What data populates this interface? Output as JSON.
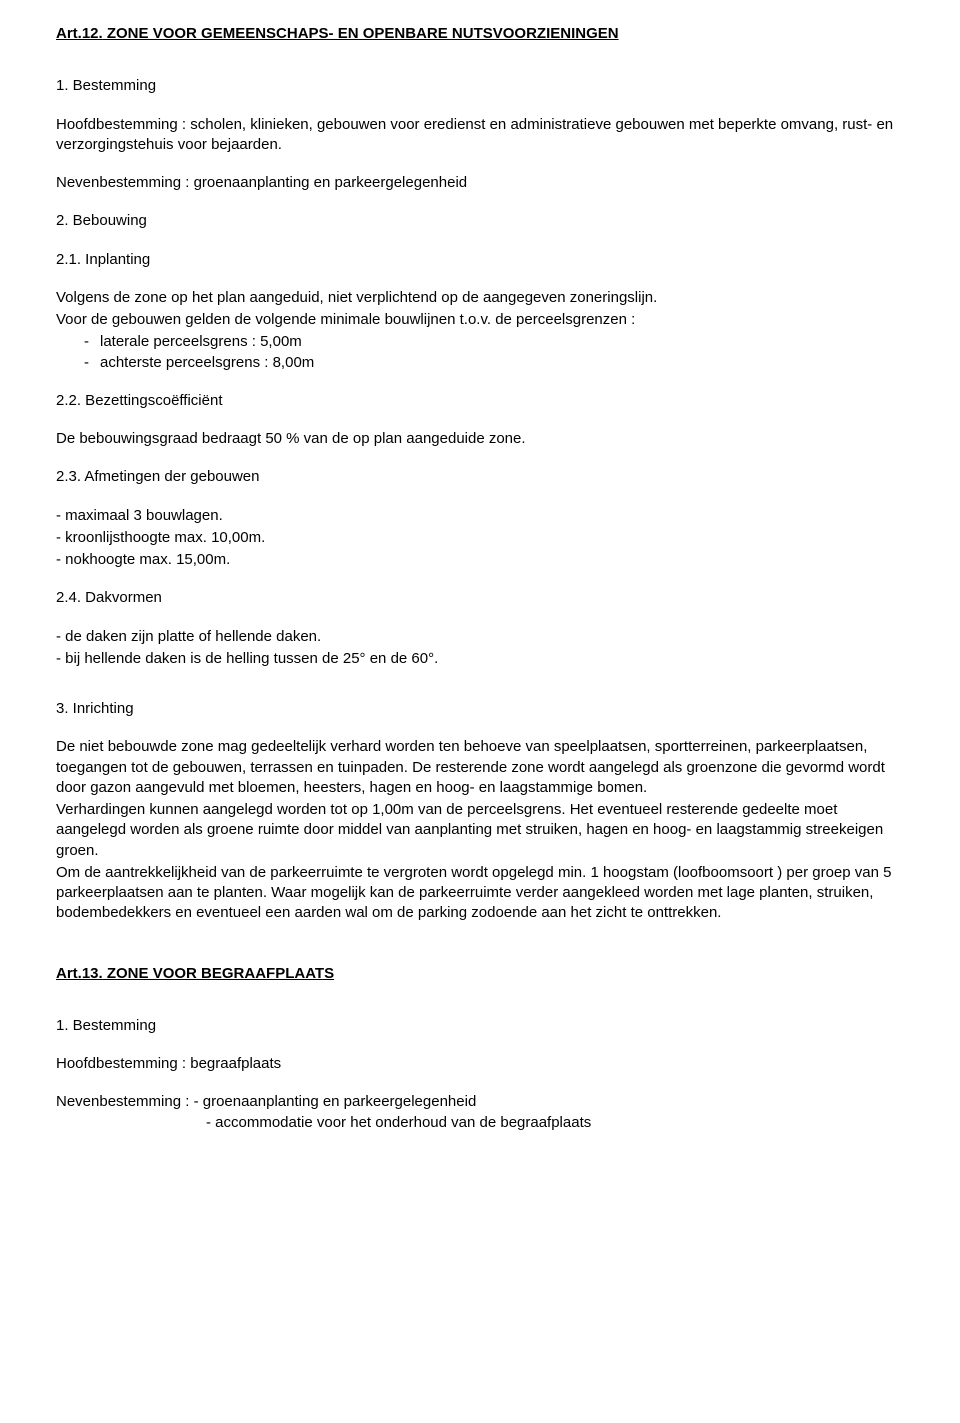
{
  "art12": {
    "num": "Art.12.",
    "title": " ZONE VOOR GEMEENSCHAPS- EN OPENBARE NUTSVOORZIENINGEN",
    "s1_num": "1. Bestemming",
    "s1_p1": "Hoofdbestemming : scholen, klinieken, gebouwen voor eredienst en administratieve gebouwen met beperkte omvang, rust- en verzorgingstehuis voor bejaarden.",
    "s1_p2": "Nevenbestemming : groenaanplanting en parkeergelegenheid",
    "s2_num": "2. Bebouwing",
    "s21_num": "2.1. Inplanting",
    "s21_p1": "Volgens de zone op het plan aangeduid, niet verplichtend op de aangegeven zoneringslijn.",
    "s21_p2": "Voor de gebouwen gelden de volgende minimale bouwlijnen t.o.v. de perceelsgrenzen :",
    "s21_b1": "laterale perceelsgrens : 5,00m",
    "s21_b2": "achterste perceelsgrens : 8,00m",
    "s22_num": "2.2. Bezettingscoëfficiënt",
    "s22_p1": "De bebouwingsgraad bedraagt 50 % van de op plan aangeduide zone.",
    "s23_num": "2.3. Afmetingen der gebouwen",
    "s23_l1": "- maximaal 3 bouwlagen.",
    "s23_l2": "- kroonlijsthoogte max. 10,00m.",
    "s23_l3": "- nokhoogte max. 15,00m.",
    "s24_num": "2.4. Dakvormen",
    "s24_l1": "- de daken zijn platte of hellende daken.",
    "s24_l2": "- bij hellende daken is de helling tussen de 25° en de 60°.",
    "s3_num": "3. Inrichting",
    "s3_p1": "De niet bebouwde zone mag gedeeltelijk verhard worden ten behoeve van speelplaatsen, sportterreinen, parkeerplaatsen, toegangen tot de gebouwen, terrassen en tuinpaden. De resterende zone wordt aangelegd als groenzone die gevormd wordt door gazon aangevuld met bloemen, heesters, hagen en hoog- en laagstammige bomen.",
    "s3_p2": "Verhardingen kunnen aangelegd worden tot op 1,00m van de perceelsgrens. Het eventueel resterende gedeelte moet aangelegd worden als groene ruimte door middel van aanplanting met struiken, hagen en hoog- en laagstammig streekeigen groen.",
    "s3_p3": "Om de aantrekkelijkheid van de parkeerruimte te vergroten wordt opgelegd min. 1 hoogstam (loofboomsoort ) per groep van 5 parkeerplaatsen aan te planten. Waar mogelijk kan de parkeerruimte verder aangekleed worden met lage planten, struiken, bodembedekkers en eventueel een aarden wal om de parking zodoende aan het zicht te onttrekken."
  },
  "art13": {
    "num": "Art.13.",
    "title": " ZONE VOOR BEGRAAFPLAATS",
    "s1_num": "1. Bestemming",
    "s1_p1": "Hoofdbestemming : begraafplaats",
    "s1_p2a": "Nevenbestemming : - groenaanplanting en parkeergelegenheid",
    "s1_p2b": "- accommodatie voor het onderhoud van de begraafplaats"
  }
}
